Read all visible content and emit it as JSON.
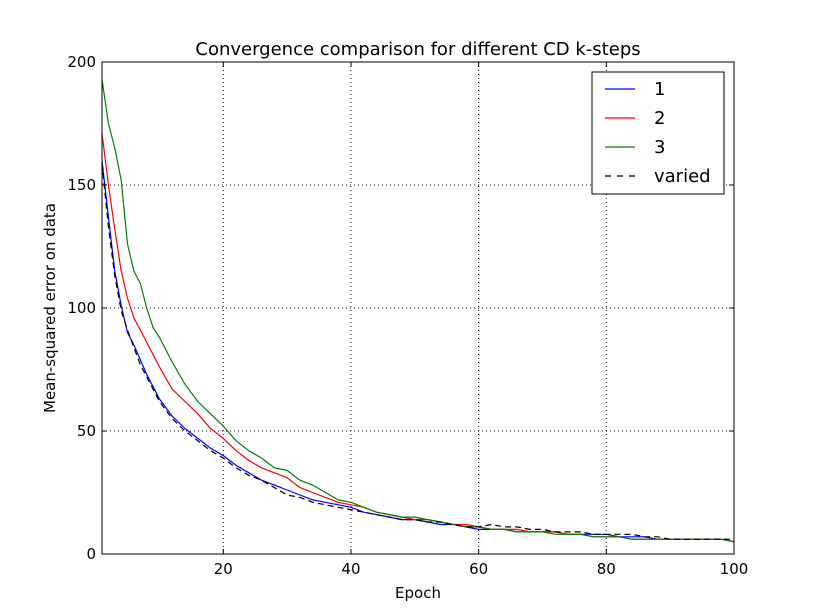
{
  "chart_data": {
    "type": "line",
    "title": "Convergence comparison for different CD k-steps",
    "xlabel": "Epoch",
    "ylabel": "Mean-squared error on data",
    "xlim": [
      1,
      100
    ],
    "ylim": [
      0,
      200
    ],
    "xticks": [
      20,
      40,
      60,
      80,
      100
    ],
    "yticks": [
      0,
      50,
      100,
      150,
      200
    ],
    "grid": true,
    "legend_position": "top-right",
    "series": [
      {
        "name": "1",
        "color": "#0000ff",
        "style": "solid",
        "x": [
          1,
          2,
          3,
          4,
          5,
          6,
          7,
          8,
          9,
          10,
          12,
          14,
          16,
          18,
          20,
          22,
          24,
          26,
          28,
          30,
          32,
          34,
          36,
          38,
          40,
          42,
          44,
          46,
          48,
          50,
          52,
          54,
          56,
          58,
          60,
          62,
          64,
          66,
          68,
          70,
          72,
          74,
          76,
          78,
          80,
          82,
          84,
          86,
          88,
          90,
          92,
          94,
          96,
          98,
          100
        ],
        "y": [
          160,
          137,
          115,
          101,
          90,
          85,
          79,
          73,
          68,
          63,
          56,
          51,
          47,
          43,
          40,
          36,
          33,
          30,
          28,
          26,
          24,
          22,
          21,
          20,
          19,
          17,
          16,
          15,
          14,
          14,
          13,
          12,
          12,
          11,
          10,
          10,
          10,
          9,
          9,
          9,
          9,
          8,
          8,
          8,
          8,
          7,
          7,
          7,
          6,
          6,
          6,
          6,
          6,
          6,
          5
        ]
      },
      {
        "name": "2",
        "color": "#ff0000",
        "style": "solid",
        "x": [
          1,
          2,
          3,
          4,
          5,
          6,
          7,
          8,
          9,
          10,
          12,
          14,
          16,
          18,
          20,
          22,
          24,
          26,
          28,
          30,
          32,
          34,
          36,
          38,
          40,
          42,
          44,
          46,
          48,
          50,
          52,
          54,
          56,
          58,
          60,
          62,
          64,
          66,
          68,
          70,
          72,
          74,
          76,
          78,
          80,
          82,
          84,
          86,
          88,
          90,
          92,
          94,
          96,
          98,
          100
        ],
        "y": [
          171,
          150,
          132,
          115,
          104,
          96,
          91,
          86,
          81,
          76,
          67,
          62,
          57,
          51,
          47,
          42,
          38,
          35,
          33,
          31,
          27,
          25,
          23,
          21,
          20,
          19,
          17,
          16,
          15,
          14,
          14,
          13,
          12,
          12,
          11,
          10,
          10,
          10,
          9,
          9,
          9,
          8,
          8,
          7,
          7,
          7,
          6,
          6,
          6,
          6,
          6,
          6,
          6,
          6,
          5
        ]
      },
      {
        "name": "3",
        "color": "#008000",
        "style": "solid",
        "x": [
          1,
          2,
          3,
          4,
          5,
          6,
          7,
          8,
          9,
          10,
          12,
          14,
          16,
          18,
          20,
          22,
          24,
          26,
          28,
          30,
          32,
          34,
          36,
          38,
          40,
          42,
          44,
          46,
          48,
          50,
          52,
          54,
          56,
          58,
          60,
          62,
          64,
          66,
          68,
          70,
          72,
          74,
          76,
          78,
          80,
          82,
          84,
          86,
          88,
          90,
          92,
          94,
          96,
          98,
          100
        ],
        "y": [
          193,
          175,
          165,
          152,
          126,
          115,
          110,
          100,
          92,
          88,
          78,
          69,
          62,
          57,
          52,
          46,
          42,
          39,
          35,
          34,
          30,
          28,
          25,
          22,
          21,
          19,
          17,
          16,
          15,
          15,
          14,
          13,
          12,
          11,
          11,
          10,
          10,
          9,
          9,
          9,
          8,
          8,
          8,
          7,
          7,
          7,
          6,
          6,
          6,
          6,
          6,
          6,
          6,
          6,
          5
        ]
      },
      {
        "name": "varied",
        "color": "#000000",
        "style": "dashed",
        "x": [
          1,
          2,
          3,
          4,
          5,
          6,
          7,
          8,
          9,
          10,
          12,
          14,
          16,
          18,
          20,
          22,
          24,
          26,
          28,
          30,
          32,
          34,
          36,
          38,
          40,
          42,
          44,
          46,
          48,
          50,
          52,
          54,
          56,
          58,
          60,
          62,
          64,
          66,
          68,
          70,
          72,
          74,
          76,
          78,
          80,
          82,
          84,
          86,
          88,
          90,
          92,
          94,
          96,
          98,
          100
        ],
        "y": [
          159,
          133,
          113,
          99,
          91,
          84,
          77,
          72,
          67,
          62,
          55,
          50,
          46,
          42,
          39,
          35,
          32,
          30,
          27,
          24,
          23,
          21,
          20,
          19,
          18,
          17,
          16,
          15,
          14,
          14,
          13,
          13,
          12,
          11,
          11,
          12,
          11,
          11,
          10,
          10,
          9,
          9,
          9,
          8,
          8,
          8,
          8,
          7,
          7,
          6,
          6,
          6,
          6,
          6,
          6
        ]
      }
    ]
  }
}
